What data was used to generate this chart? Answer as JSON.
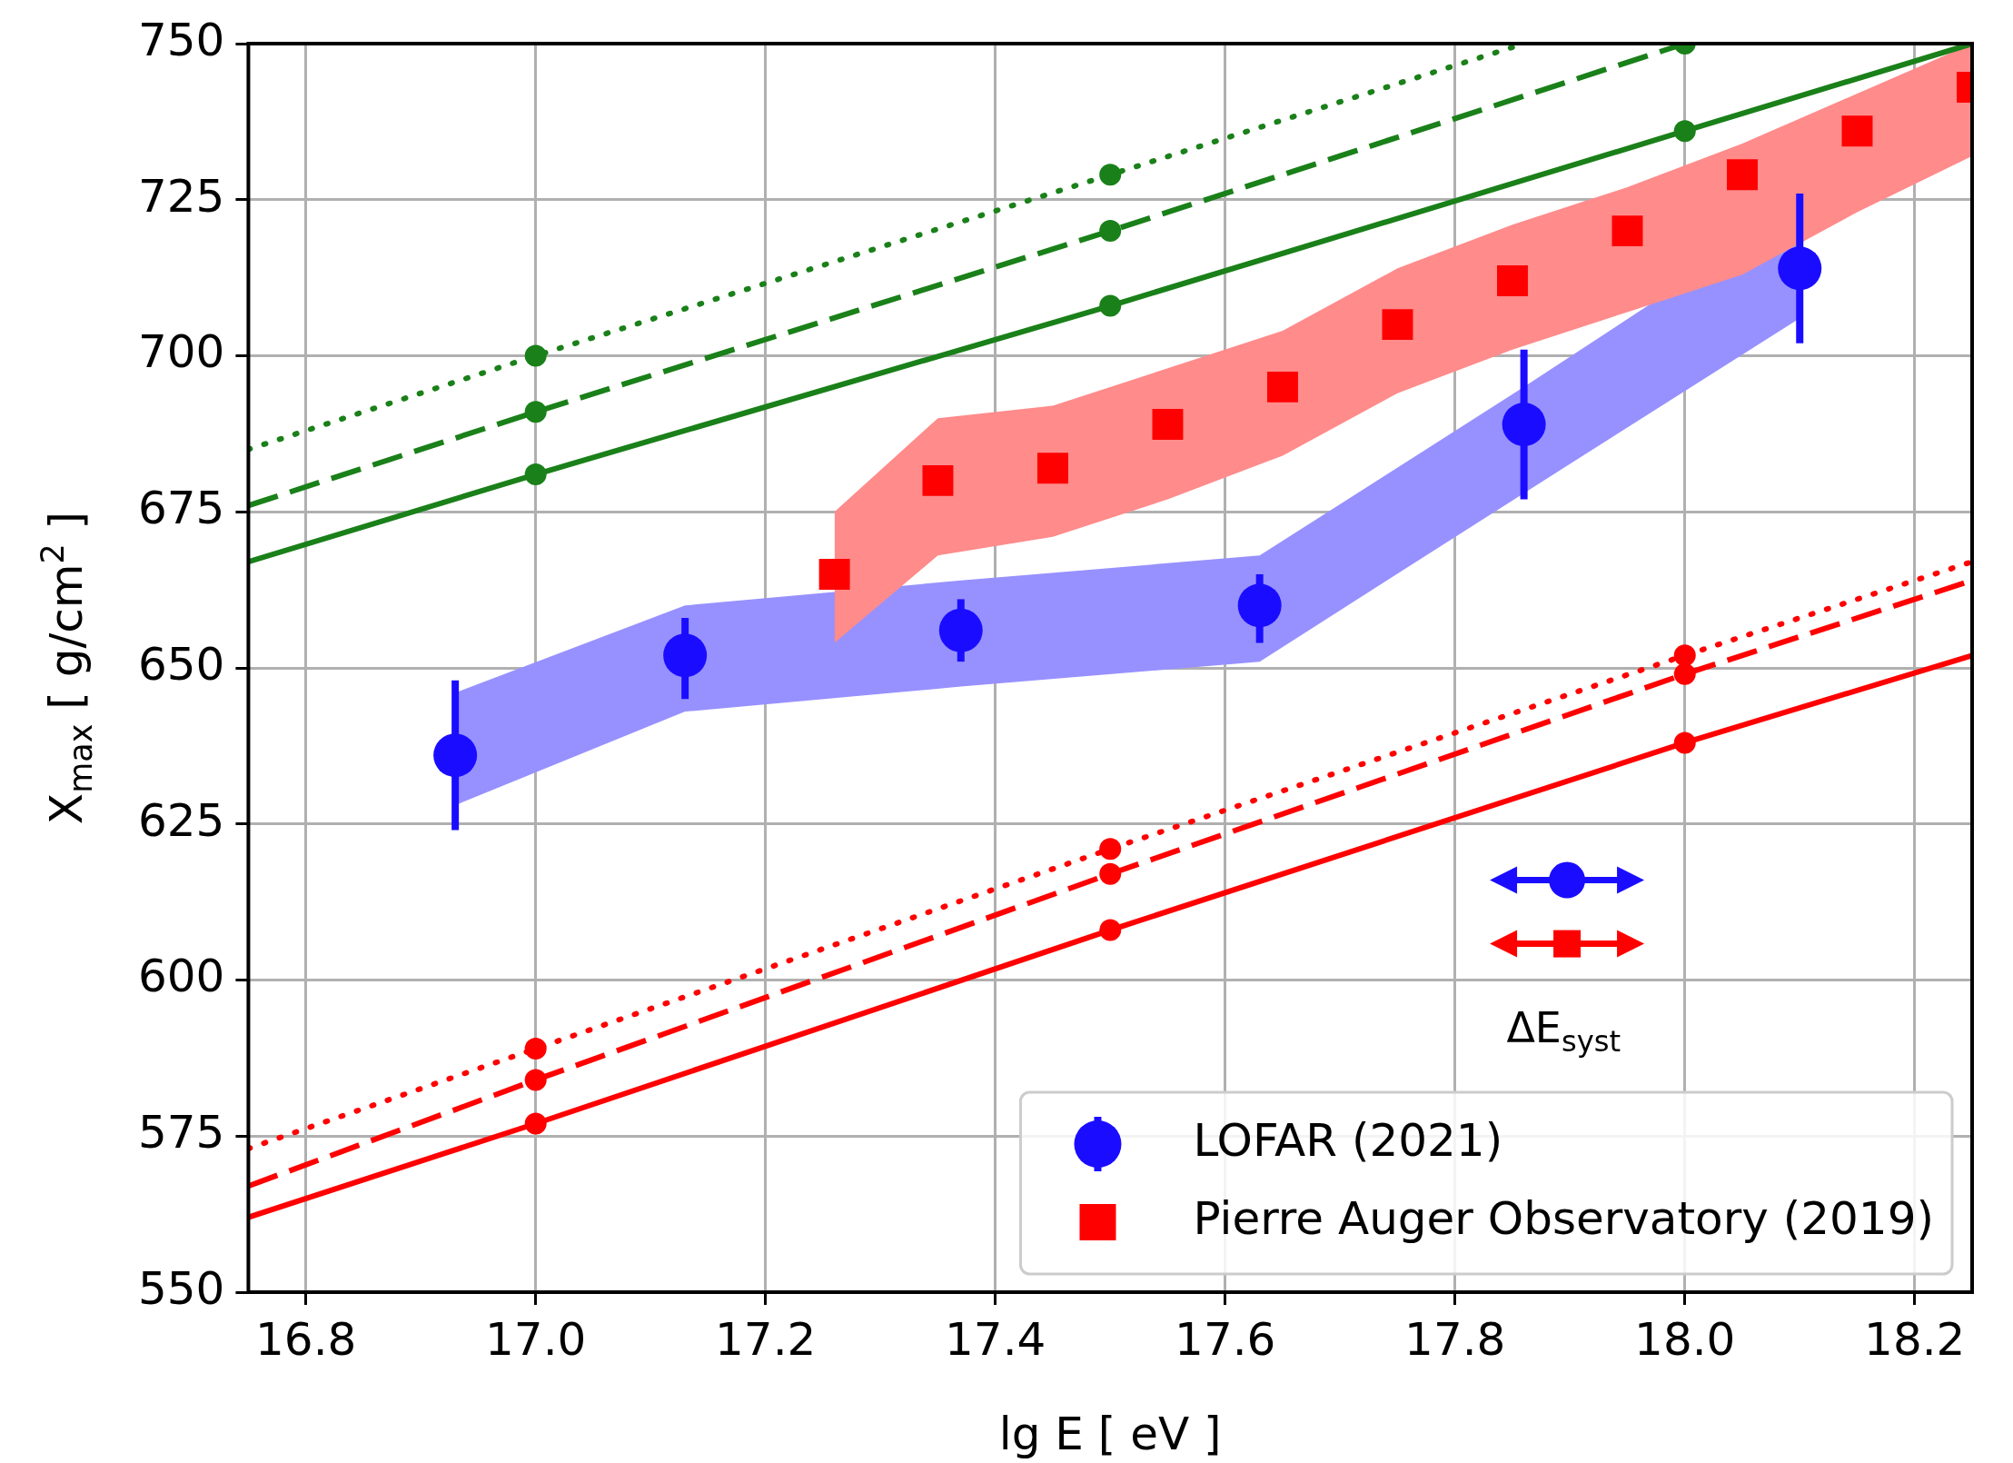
{
  "chart_data": {
    "type": "scatter",
    "xlabel": "lg E [ eV ]",
    "ylabel": "X$_{max}$ [ g/cm$^{2}$ ]",
    "xlim": [
      16.75,
      18.25
    ],
    "ylim": [
      550,
      750
    ],
    "xticks": [
      {
        "value": 16.8,
        "label": "16.8"
      },
      {
        "value": 17,
        "label": "17.0"
      },
      {
        "value": 17.2,
        "label": "17.2"
      },
      {
        "value": 17.4,
        "label": "17.4"
      },
      {
        "value": 17.6,
        "label": "17.6"
      },
      {
        "value": 17.8,
        "label": "17.8"
      },
      {
        "value": 18,
        "label": "18.0"
      },
      {
        "value": 18.2,
        "label": "18.2"
      }
    ],
    "yticks": [
      550,
      575,
      600,
      625,
      650,
      675,
      700,
      725,
      750
    ],
    "grid": true,
    "legend": "bottom right",
    "annotations": [
      "ΔE$_{syst}$"
    ],
    "series": [
      {
        "type": "line",
        "color": "#1a8019",
        "marker": "none",
        "line_style": "solid",
        "x": [
          16.75,
          17,
          17.5,
          18,
          18.25
        ],
        "values": [
          667,
          681,
          708,
          736,
          750
        ]
      },
      {
        "type": "line",
        "color": "#1a8019",
        "marker": "none",
        "line_style": "dashed",
        "x": [
          16.75,
          17,
          17.5,
          18
        ],
        "values": [
          676,
          691,
          720,
          750
        ]
      },
      {
        "type": "line",
        "color": "#1a8019",
        "marker": "none",
        "line_style": "dotted",
        "x": [
          16.75,
          17,
          17.5,
          17.86
        ],
        "values": [
          685,
          700,
          729,
          750
        ]
      },
      {
        "type": "line",
        "color": "#ff0000",
        "marker": "none",
        "line_style": "solid",
        "x": [
          16.75,
          17,
          17.5,
          18,
          18.25
        ],
        "values": [
          562,
          577,
          608,
          638,
          652
        ]
      },
      {
        "type": "line",
        "color": "#ff0000",
        "marker": "none",
        "line_style": "dashed",
        "x": [
          16.75,
          17,
          17.5,
          18,
          18.25
        ],
        "values": [
          567,
          584,
          617,
          649,
          664
        ]
      },
      {
        "type": "line",
        "color": "#ff0000",
        "marker": "none",
        "line_style": "dotted",
        "x": [
          16.75,
          17,
          17.5,
          18,
          18.25
        ],
        "values": [
          573,
          589,
          621,
          652,
          667
        ]
      },
      {
        "type": "scatter",
        "color": "#1a8019",
        "marker": "circle",
        "x": [
          17,
          17,
          17,
          17.5,
          17.5,
          17.5,
          18,
          18
        ],
        "values": [
          681,
          691,
          700,
          708,
          720,
          729,
          736,
          750
        ]
      },
      {
        "type": "scatter",
        "color": "#ff0000",
        "marker": "circle",
        "x": [
          17,
          17,
          17,
          17.5,
          17.5,
          17.5,
          18,
          18,
          18
        ],
        "values": [
          577,
          584,
          589,
          608,
          617,
          621,
          638,
          649,
          652
        ]
      },
      {
        "type": "scatter",
        "name": "Pierre Auger Observatory (2019)",
        "color": "#ff0000",
        "marker": "square",
        "x": [
          17.26,
          17.35,
          17.45,
          17.55,
          17.65,
          17.75,
          17.85,
          17.95,
          18.05,
          18.15,
          18.25
        ],
        "values": [
          665,
          680,
          682,
          689,
          695,
          705,
          712,
          720,
          729,
          736,
          743
        ],
        "lower": [
          654,
          668,
          671,
          677,
          684,
          694,
          701,
          707,
          713,
          723,
          732
        ],
        "upper": [
          675,
          690,
          692,
          698,
          704,
          714,
          721,
          727,
          734,
          742,
          750
        ]
      },
      {
        "type": "scatter",
        "name": "LOFAR (2021)",
        "color": "#1a0dff",
        "marker": "circle",
        "x": [
          16.93,
          17.13,
          17.37,
          17.63,
          17.86,
          18.1
        ],
        "values": [
          636,
          652,
          656,
          660,
          689,
          714
        ],
        "lower": [
          628,
          643,
          647,
          651,
          678,
          706
        ],
        "upper": [
          646,
          660,
          664,
          668,
          695,
          724
        ],
        "errors": [
          [
            624,
            648
          ],
          [
            645,
            658
          ],
          [
            651,
            661
          ],
          [
            654,
            665
          ],
          [
            677,
            701
          ],
          [
            702,
            726
          ]
        ]
      }
    ]
  }
}
